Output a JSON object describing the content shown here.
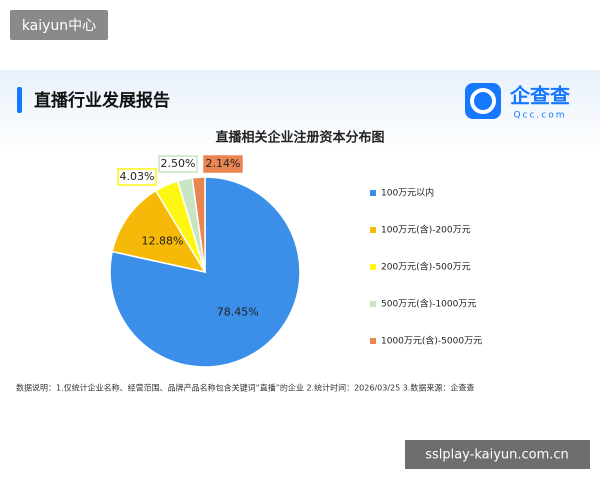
{
  "watermark_top": "kaiyun中心",
  "header": {
    "title": "直播行业发展报告",
    "logo_text": "企查查",
    "logo_sub": "Qcc.com"
  },
  "chart_data": {
    "type": "pie",
    "title": "直播相关企业注册资本分布图",
    "categories": [
      "100万元以内",
      "100万元(含)-200万元",
      "200万元(含)-500万元",
      "500万元(含)-1000万元",
      "1000万元(含)-5000万元"
    ],
    "values": [
      78.45,
      12.88,
      4.03,
      2.5,
      2.14
    ],
    "value_labels": [
      "78.45%",
      "12.88%",
      "4.03%",
      "2.50%",
      "2.14%"
    ],
    "colors": [
      "#3b8fe8",
      "#f6b908",
      "#fdf712",
      "#c9e4c3",
      "#e88550"
    ]
  },
  "footnote": "数据说明：1.仅统计企业名称、经营范围、品牌产品名称包含关键词“直播”的企业   2.统计时间：2026/03/25   3.数据来源：企查查",
  "watermark_bottom": "sslplay-kaiyun.com.cn"
}
